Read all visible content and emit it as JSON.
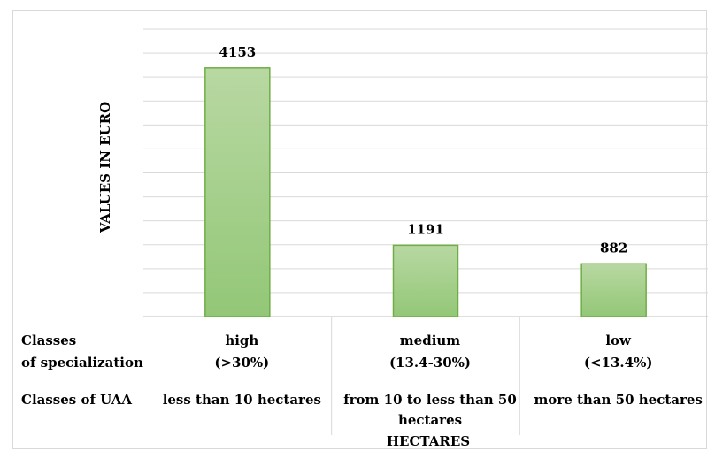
{
  "chart_data": {
    "type": "bar",
    "categories": [
      "high",
      "medium",
      "low"
    ],
    "values": [
      4153,
      1191,
      882
    ],
    "ylabel": "VALUES IN EURO",
    "xlabel": "HECTARES",
    "ylim": [
      0,
      4800
    ],
    "grid": true,
    "bar_color": "#a9d18e",
    "bar_edge_color": "#70ad47",
    "data_labels": [
      "4153",
      "1191",
      "882"
    ],
    "table": {
      "row1_header": [
        "Classes",
        "of specialization"
      ],
      "row2_header": "Classes of UAA",
      "columns": [
        {
          "class": "high",
          "range": "(>30%)",
          "uaa": [
            "less than 10 hectares"
          ]
        },
        {
          "class": "medium",
          "range": "(13.4-30%)",
          "uaa": [
            "from 10 to less than 50",
            "hectares"
          ]
        },
        {
          "class": "low",
          "range": "(<13.4%)",
          "uaa": [
            "more than 50 hectares"
          ]
        }
      ]
    }
  }
}
